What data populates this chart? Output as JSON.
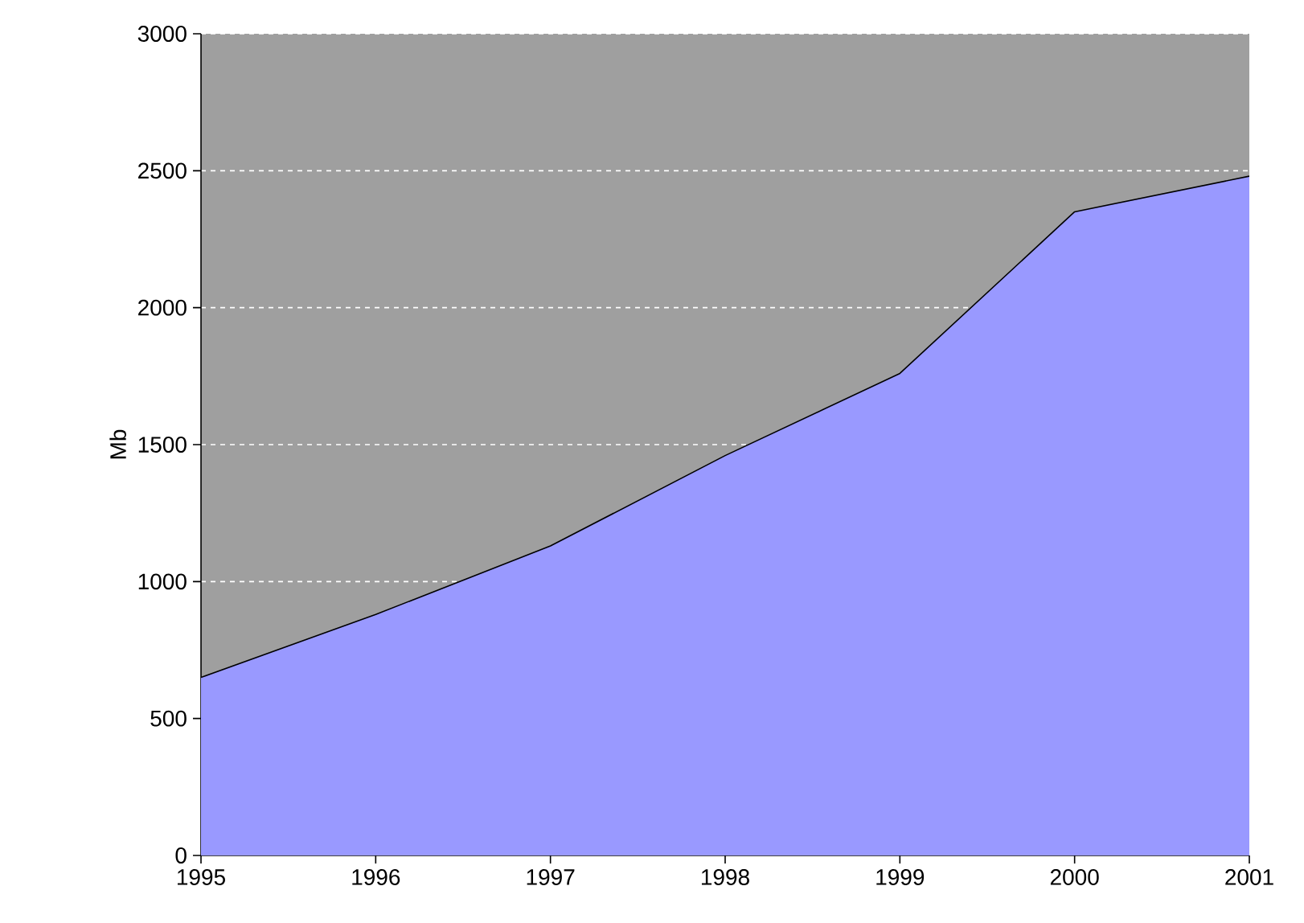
{
  "chart_data": {
    "type": "area",
    "ylabel": "Mb",
    "x": [
      1995,
      1996,
      1997,
      1998,
      1999,
      2000,
      2001
    ],
    "series": [
      {
        "color": "#9999ff",
        "values": [
          650,
          880,
          1130,
          1460,
          1760,
          2350,
          2480
        ]
      }
    ],
    "xlim": [
      1995,
      2001
    ],
    "ylim": [
      0,
      3000
    ],
    "xticks": [
      1995,
      1996,
      1997,
      1998,
      1999,
      2000,
      2001
    ],
    "yticks": [
      0,
      500,
      1000,
      1500,
      2000,
      2500,
      3000
    ],
    "grid": "y",
    "line_style": "solid"
  }
}
